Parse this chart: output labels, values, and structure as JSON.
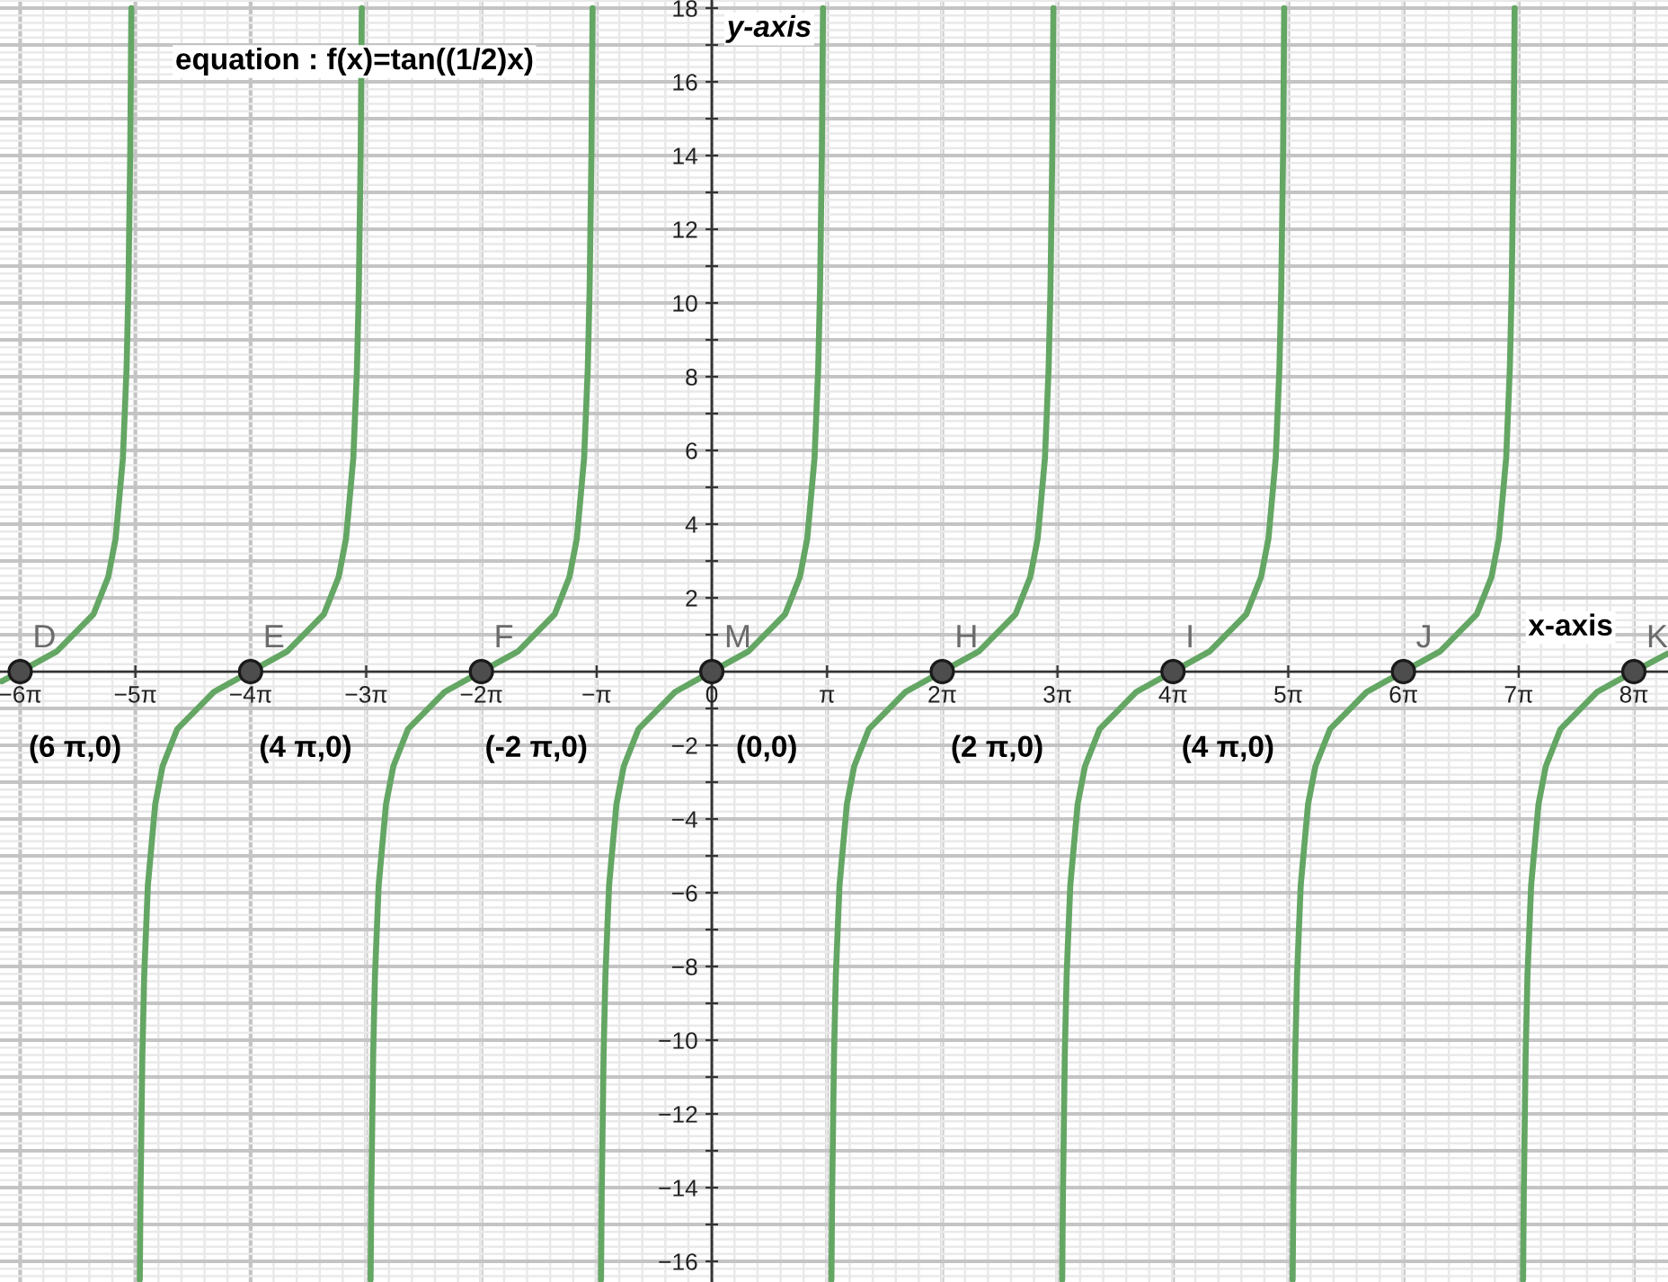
{
  "chart_data": {
    "type": "line",
    "title": "equation : f(x)=tan((1/2)x)",
    "xlabel": "x-axis",
    "ylabel": "y-axis",
    "xlim": [
      -19.4,
      26.06
    ],
    "ylim": [
      -16.56,
      18.22
    ],
    "xticks": [
      {
        "value": -18.85,
        "label": "−6π"
      },
      {
        "value": -15.71,
        "label": "−5π"
      },
      {
        "value": -12.57,
        "label": "−4π"
      },
      {
        "value": -9.42,
        "label": "−3π"
      },
      {
        "value": -6.28,
        "label": "−2π"
      },
      {
        "value": -3.14,
        "label": "−π"
      },
      0,
      {
        "value": 3.14,
        "label": "π"
      },
      {
        "value": 6.28,
        "label": "2π"
      },
      {
        "value": 9.42,
        "label": "3π"
      },
      {
        "value": 12.57,
        "label": "4π"
      },
      {
        "value": 15.71,
        "label": "5π"
      },
      {
        "value": 18.85,
        "label": "6π"
      },
      {
        "value": 21.99,
        "label": "7π"
      },
      {
        "value": 25.13,
        "label": "8π"
      }
    ],
    "yticks": [
      {
        "value": -16,
        "label": "−16"
      },
      {
        "value": -15,
        "label": null
      },
      {
        "value": -14,
        "label": "−14"
      },
      {
        "value": -13,
        "label": null
      },
      {
        "value": -12,
        "label": "−12"
      },
      {
        "value": -11,
        "label": null
      },
      {
        "value": -10,
        "label": "−10"
      },
      {
        "value": -9,
        "label": null
      },
      {
        "value": -8,
        "label": "−8"
      },
      {
        "value": -7,
        "label": null
      },
      {
        "value": -6,
        "label": "−6"
      },
      {
        "value": -5,
        "label": null
      },
      {
        "value": -4,
        "label": "−4"
      },
      {
        "value": -3,
        "label": null
      },
      {
        "value": -2,
        "label": "−2"
      },
      {
        "value": -1,
        "label": null
      },
      {
        "value": 1,
        "label": null
      },
      2,
      {
        "value": 3,
        "label": null
      },
      4,
      {
        "value": 5,
        "label": null
      },
      6,
      {
        "value": 7,
        "label": null
      },
      8,
      {
        "value": 9,
        "label": null
      },
      10,
      {
        "value": 11,
        "label": null
      },
      12,
      {
        "value": 13,
        "label": null
      },
      14,
      {
        "value": 15,
        "label": null
      },
      16,
      {
        "value": 17,
        "label": null
      },
      18
    ],
    "grid": true,
    "series": [
      {
        "color": "#64a664",
        "marker": "none",
        "x": [
          -19.35,
          -18.85,
          -17.85,
          -16.85,
          -16.45,
          -16.25,
          -16.05,
          -15.95,
          -15.9,
          -15.85,
          -15.82,
          -15.71,
          -15.59,
          -15.57,
          -15.52,
          -15.47,
          -15.37,
          -15.17,
          -14.97,
          -14.57,
          -13.57,
          -12.57,
          -11.57,
          -10.57,
          -10.17,
          -9.97,
          -9.77,
          -9.67,
          -9.62,
          -9.57,
          -9.54,
          -9.42,
          -9.3,
          -9.28,
          -9.23,
          -9.18,
          -9.08,
          -8.88,
          -8.68,
          -8.28,
          -7.28,
          -6.28,
          -5.28,
          -4.28,
          -3.88,
          -3.68,
          -3.48,
          -3.38,
          -3.33,
          -3.28,
          -3.25,
          -3.14,
          -3.02,
          -3.0,
          -2.95,
          -2.9,
          -2.8,
          -2.6,
          -2.4,
          -2.0,
          -1.0,
          0,
          1.0,
          2.0,
          2.4,
          2.6,
          2.8,
          2.9,
          2.95,
          3.0,
          3.03,
          3.14,
          3.26,
          3.28,
          3.33,
          3.38,
          3.48,
          3.68,
          3.88,
          4.28,
          5.28,
          6.28,
          7.28,
          8.28,
          8.68,
          8.88,
          9.08,
          9.18,
          9.23,
          9.28,
          9.31,
          9.42,
          9.55,
          9.57,
          9.62,
          9.67,
          9.77,
          9.97,
          10.17,
          10.57,
          11.57,
          12.57,
          13.57,
          14.57,
          14.97,
          15.17,
          15.37,
          15.47,
          15.52,
          15.57,
          15.6,
          15.71,
          15.83,
          15.85,
          15.9,
          15.95,
          16.05,
          16.25,
          16.45,
          16.85,
          17.85,
          18.85,
          19.85,
          20.85,
          21.25,
          21.45,
          21.65,
          21.75,
          21.8,
          21.85,
          21.88,
          21.99,
          22.11,
          22.13,
          22.18,
          22.23,
          22.33,
          22.53,
          22.73,
          23.13,
          24.13,
          25.13,
          26.03
        ],
        "values": [
          -0.26,
          0,
          0.55,
          1.56,
          2.57,
          3.6,
          5.8,
          8.24,
          10.41,
          14.1,
          18,
          null,
          -16.5,
          -14.1,
          -10.41,
          -8.24,
          -5.8,
          -3.6,
          -2.57,
          -1.56,
          -0.55,
          0,
          0.55,
          1.56,
          2.57,
          3.6,
          5.8,
          8.24,
          10.41,
          14.1,
          18,
          null,
          -16.5,
          -14.1,
          -10.41,
          -8.24,
          -5.8,
          -3.6,
          -2.57,
          -1.56,
          -0.55,
          0,
          0.55,
          1.56,
          2.57,
          3.6,
          5.8,
          8.24,
          10.41,
          14.1,
          18,
          null,
          -16.5,
          -14.1,
          -10.41,
          -8.24,
          -5.8,
          -3.6,
          -2.57,
          -1.56,
          -0.55,
          0,
          0.55,
          1.56,
          2.57,
          3.6,
          5.8,
          8.24,
          10.41,
          14.1,
          18,
          null,
          -16.5,
          -14.1,
          -10.41,
          -8.24,
          -5.8,
          -3.6,
          -2.57,
          -1.56,
          -0.55,
          0,
          0.55,
          1.56,
          2.57,
          3.6,
          5.8,
          8.24,
          10.41,
          14.1,
          18,
          null,
          -16.5,
          -14.1,
          -10.41,
          -8.24,
          -5.8,
          -3.6,
          -2.57,
          -1.56,
          -0.55,
          0,
          0.55,
          1.56,
          2.57,
          3.6,
          5.8,
          8.24,
          10.41,
          14.1,
          18,
          null,
          -16.5,
          -14.1,
          -10.41,
          -8.24,
          -5.8,
          -3.6,
          -2.57,
          -1.56,
          -0.55,
          0,
          0.55,
          1.56,
          2.57,
          3.6,
          5.8,
          8.24,
          10.41,
          14.1,
          18,
          null,
          -16.5,
          -14.1,
          -10.41,
          -8.24,
          -5.8,
          -3.6,
          -2.57,
          -1.56,
          -0.55,
          0,
          0.48
        ]
      },
      {
        "type": "scatter",
        "color": "#4d4d4d",
        "marker": "circle",
        "x": [
          -18.85,
          -12.57,
          -6.28,
          0,
          6.28,
          12.57,
          18.85,
          25.13
        ],
        "values": [
          0,
          0,
          0,
          0,
          0,
          0,
          0,
          0
        ]
      }
    ],
    "annotations": [
      {
        "text": "D",
        "x": -18.85,
        "y": 0
      },
      {
        "text": "E",
        "x": -12.57,
        "y": 0
      },
      {
        "text": "F",
        "x": -6.28,
        "y": 0
      },
      {
        "text": "M",
        "x": 0,
        "y": 0
      },
      {
        "text": "H",
        "x": 6.28,
        "y": 0
      },
      {
        "text": "I",
        "x": 12.57,
        "y": 0
      },
      {
        "text": "J",
        "x": 18.85,
        "y": 0
      },
      {
        "text": "K",
        "x": 25.13,
        "y": 0
      },
      {
        "text": "(6 π,0)",
        "x": -18.85,
        "y": 0
      },
      {
        "text": "(4 π,0)",
        "x": -12.57,
        "y": 0
      },
      {
        "text": "(-2 π,0)",
        "x": -6.28,
        "y": 0
      },
      {
        "text": "(0,0)",
        "x": 0,
        "y": 0
      },
      {
        "text": "(2 π,0)",
        "x": 6.28,
        "y": 0
      },
      {
        "text": "(4 π,0)",
        "x": 12.57,
        "y": 0
      }
    ]
  }
}
